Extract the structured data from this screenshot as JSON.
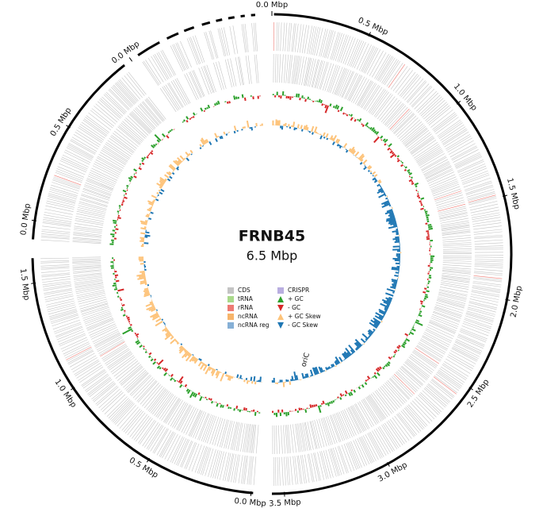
{
  "title": "FRNB45",
  "subtitle": "6.5 Mbp",
  "origin_label": "oriC",
  "ticks": [
    "0.0 Mbp",
    "0.5 Mbp",
    "1.0 Mbp",
    "1.5 Mbp",
    "2.0 Mbp",
    "2.5 Mbp",
    "3.0 Mbp",
    "3.5 Mbp",
    "0.0 Mbp",
    "0.5 Mbp",
    "1.0 Mbp",
    "1.5 Mbp",
    "0.0 Mbp",
    "0.5 Mbp",
    "0.0 Mbp"
  ],
  "legend": [
    {
      "label": "CDS",
      "color": "#c4c4c4",
      "shape": "square"
    },
    {
      "label": "tRNA",
      "color": "#a9d98a",
      "shape": "square"
    },
    {
      "label": "rRNA",
      "color": "#ee7a73",
      "shape": "square"
    },
    {
      "label": "ncRNA",
      "color": "#f7b46a",
      "shape": "square"
    },
    {
      "label": "ncRNA reg",
      "color": "#86b0d6",
      "shape": "square"
    },
    {
      "label": "CRISPR",
      "color": "#b9aee0",
      "shape": "square"
    },
    {
      "label": "+ GC",
      "color": "#2ca02c",
      "shape": "up"
    },
    {
      "label": "- GC",
      "color": "#d62728",
      "shape": "down"
    },
    {
      "label": "+ GC Skew",
      "color": "#fdc37a",
      "shape": "up"
    },
    {
      "label": "- GC Skew",
      "color": "#1f77b4",
      "shape": "down"
    }
  ]
}
